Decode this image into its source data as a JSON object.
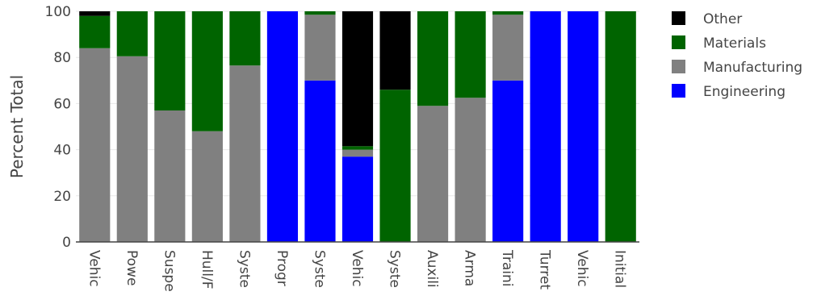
{
  "chart_data": {
    "type": "bar",
    "stacked": true,
    "title": "",
    "xlabel": "",
    "ylabel": "Percent Total",
    "ylim": [
      0,
      100
    ],
    "yticks": [
      0,
      20,
      40,
      60,
      80,
      100
    ],
    "grid": true,
    "legend_position": "top-right",
    "categories": [
      "Vehic",
      "Powe",
      "Suspe",
      "Hull/F",
      "Syste",
      "Progr",
      "Syste",
      "Vehic",
      "Syste",
      "Auxili",
      "Arma",
      "Traini",
      "Turret",
      "Vehic",
      "Initial"
    ],
    "series": [
      {
        "name": "Engineering",
        "color": "#0000ff",
        "values": [
          0,
          0,
          0,
          0,
          0,
          100,
          70,
          37,
          0,
          0,
          0,
          70,
          100,
          100,
          0
        ]
      },
      {
        "name": "Manufacturing",
        "color": "#808080",
        "values": [
          84,
          80.5,
          57,
          48,
          76.5,
          0,
          28.5,
          3,
          0,
          59,
          62.5,
          28.5,
          0,
          0,
          0
        ]
      },
      {
        "name": "Materials",
        "color": "#006400",
        "values": [
          14,
          19.5,
          43,
          52,
          23.5,
          0,
          1.5,
          1.5,
          66,
          41,
          37.5,
          1.5,
          0,
          0,
          100
        ]
      },
      {
        "name": "Other",
        "color": "#000000",
        "values": [
          2,
          0,
          0,
          0,
          0,
          0,
          0,
          58.5,
          34,
          0,
          0,
          0,
          0,
          0,
          0
        ]
      }
    ],
    "legend_order": [
      "Other",
      "Materials",
      "Manufacturing",
      "Engineering"
    ]
  }
}
